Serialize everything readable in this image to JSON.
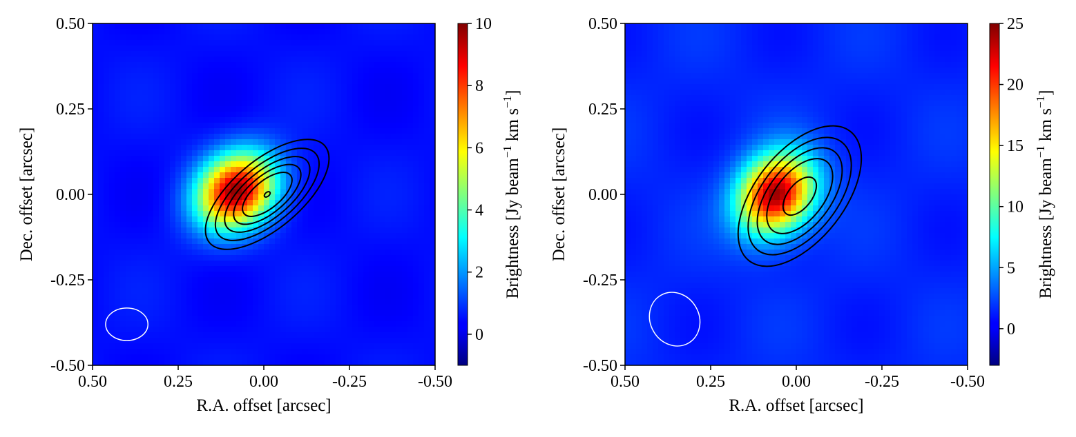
{
  "chart_data": [
    {
      "type": "heatmap",
      "title": "",
      "xlabel": "R.A. offset [arcsec]",
      "ylabel": "Dec. offset [arcsec]",
      "xlim": [
        0.5,
        -0.5
      ],
      "ylim": [
        -0.5,
        0.5
      ],
      "xticks": [
        0.5,
        0.25,
        0.0,
        -0.25,
        -0.5
      ],
      "xtick_labels": [
        "0.50",
        "0.25",
        "0.00",
        "-0.25",
        "-0.50"
      ],
      "yticks": [
        -0.5,
        -0.25,
        0.0,
        0.25,
        0.5
      ],
      "ytick_labels": [
        "-0.50",
        "-0.25",
        "0.00",
        "0.25",
        "0.50"
      ],
      "colorbar": {
        "label": "Brightness [Jy beam",
        "label_sup": "−1",
        "label_tail": " km s",
        "label_sup2": "−1",
        "label_end": "]",
        "range": [
          -1,
          10
        ],
        "ticks": [
          0,
          2,
          4,
          6,
          8,
          10
        ],
        "tick_labels": [
          "0",
          "2",
          "4",
          "6",
          "8",
          "10"
        ],
        "colormap": "jet"
      },
      "background_level": 0.5,
      "emission_peak": {
        "ra": 0.08,
        "dec": 0.01,
        "value": 9.6
      },
      "contours": {
        "center": {
          "ra": -0.01,
          "dec": 0.0
        },
        "position_angle_deg": 40,
        "semi_axes": [
          [
            0.22,
            0.1
          ],
          [
            0.185,
            0.083
          ],
          [
            0.152,
            0.068
          ],
          [
            0.12,
            0.054
          ],
          [
            0.088,
            0.04
          ],
          [
            0.01,
            0.006
          ]
        ],
        "color": "#000000"
      },
      "beam": {
        "ra": 0.4,
        "dec": -0.38,
        "major": 0.065,
        "minor": 0.05,
        "pa_deg": 90,
        "color": "#ffffff"
      }
    },
    {
      "type": "heatmap",
      "title": "",
      "xlabel": "R.A. offset [arcsec]",
      "ylabel": "Dec. offset [arcsec]",
      "xlim": [
        0.5,
        -0.5
      ],
      "ylim": [
        -0.5,
        0.5
      ],
      "xticks": [
        0.5,
        0.25,
        0.0,
        -0.25,
        -0.5
      ],
      "xtick_labels": [
        "0.50",
        "0.25",
        "0.00",
        "-0.25",
        "-0.50"
      ],
      "yticks": [
        -0.5,
        -0.25,
        0.0,
        0.25,
        0.5
      ],
      "ytick_labels": [
        "-0.50",
        "-0.25",
        "0.00",
        "0.25",
        "0.50"
      ],
      "colorbar": {
        "label": "Brightness [Jy beam",
        "label_sup": "−1",
        "label_tail": " km s",
        "label_sup2": "−1",
        "label_end": "]",
        "range": [
          -3,
          25
        ],
        "ticks": [
          0,
          5,
          10,
          15,
          20,
          25
        ],
        "tick_labels": [
          "0",
          "5",
          "10",
          "15",
          "20",
          "25"
        ],
        "colormap": "jet"
      },
      "background_level": 1.5,
      "emission_peak": {
        "ra": 0.06,
        "dec": 0.0,
        "value": 24.5
      },
      "contours": {
        "center": {
          "ra": -0.01,
          "dec": -0.005
        },
        "position_angle_deg": 52,
        "semi_axes": [
          [
            0.24,
            0.13
          ],
          [
            0.2,
            0.11
          ],
          [
            0.165,
            0.09
          ],
          [
            0.128,
            0.07
          ],
          [
            0.065,
            0.035
          ]
        ],
        "color": "#000000"
      },
      "beam": {
        "ra": 0.355,
        "dec": -0.365,
        "major": 0.085,
        "minor": 0.075,
        "pa_deg": 30,
        "color": "#ffffff"
      }
    }
  ]
}
